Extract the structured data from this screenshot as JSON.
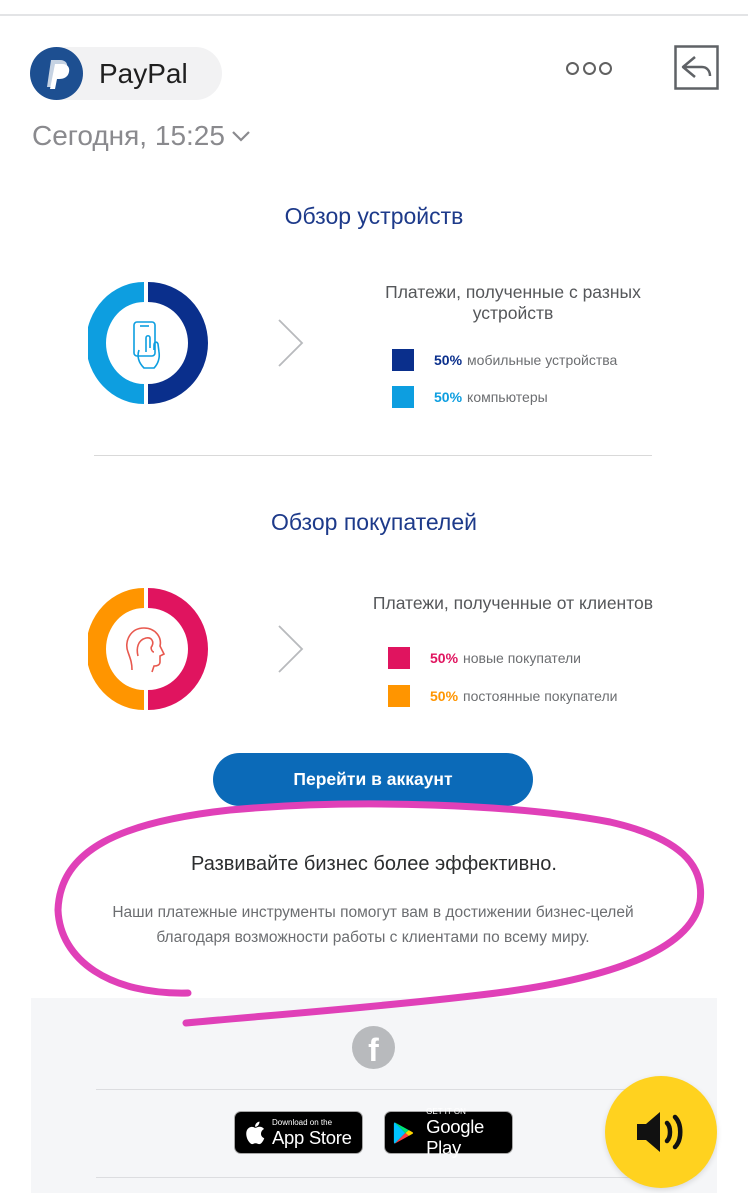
{
  "header": {
    "sender_name": "PayPal",
    "date": "Сегодня, 15:25"
  },
  "devices": {
    "title": "Обзор устройств",
    "legend_title": "Платежи, полученные с разных устройств",
    "items": [
      {
        "pct": "50%",
        "label": "мобильные устройства",
        "color": "#0a2f8c"
      },
      {
        "pct": "50%",
        "label": "компьютеры",
        "color": "#0d9ee0"
      }
    ]
  },
  "customers": {
    "title": "Обзор покупателей",
    "legend_title": "Платежи, полученные от клиентов",
    "items": [
      {
        "pct": "50%",
        "label": "новые покупатели",
        "color": "#e0145f"
      },
      {
        "pct": "50%",
        "label": "постоянные покупатели",
        "color": "#ff9500"
      }
    ]
  },
  "cta": {
    "label": "Перейти в аккаунт"
  },
  "promo": {
    "title": "Развивайте бизнес более эффективно.",
    "text": "Наши платежные инструменты помогут вам в достижении бизнес-целей благодаря возможности работы с клиентами по всему миру."
  },
  "footer": {
    "facebook_glyph": "f",
    "app_store": {
      "small": "Download on the",
      "big": "App Store"
    },
    "google_play": {
      "small": "GET IT ON",
      "big": "Google Play"
    }
  },
  "colors": {
    "brand_blue": "#1d3a8a",
    "button_blue": "#0b6ab8",
    "annotation_magenta": "#e040b8",
    "speaker_yellow": "#ffd21f"
  },
  "icons": [
    "paypal-logo-icon",
    "more-options-icon",
    "reply-icon",
    "chevron-down-icon",
    "mobile-hand-icon",
    "person-head-icon",
    "chevron-right-icon",
    "facebook-icon",
    "apple-icon",
    "google-play-icon",
    "speaker-icon"
  ]
}
